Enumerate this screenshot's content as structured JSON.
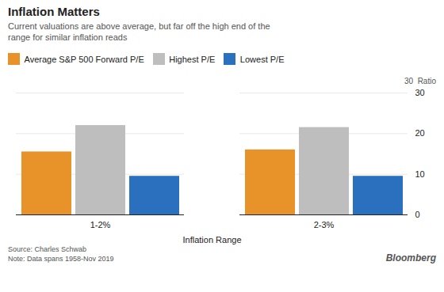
{
  "chart_data": {
    "type": "bar",
    "title": "Inflation Matters",
    "subtitle": "Current valuations are above average, but far off the high end of the\nrange for similar inflation reads",
    "categories": [
      "1-2%",
      "2-3%"
    ],
    "series": [
      {
        "name": "Average S&P 500 Forward P/E",
        "color": "#E8922A",
        "values": [
          15.5,
          16.0
        ]
      },
      {
        "name": "Highest P/E",
        "color": "#BEBEBE",
        "values": [
          22.0,
          21.5
        ]
      },
      {
        "name": "Lowest P/E",
        "color": "#2B6FBF",
        "values": [
          9.5,
          9.5
        ]
      }
    ],
    "xlabel": "Inflation Range",
    "ylim": [
      0,
      30
    ],
    "yticks": [
      0,
      10,
      20,
      30
    ],
    "grid": true,
    "legend": "top-left",
    "annotations": [
      "30  Ratio"
    ],
    "source": "Source: Charles Schwab\nNote: Data spans 1958-Nov 2019",
    "credit": "Bloomberg"
  }
}
